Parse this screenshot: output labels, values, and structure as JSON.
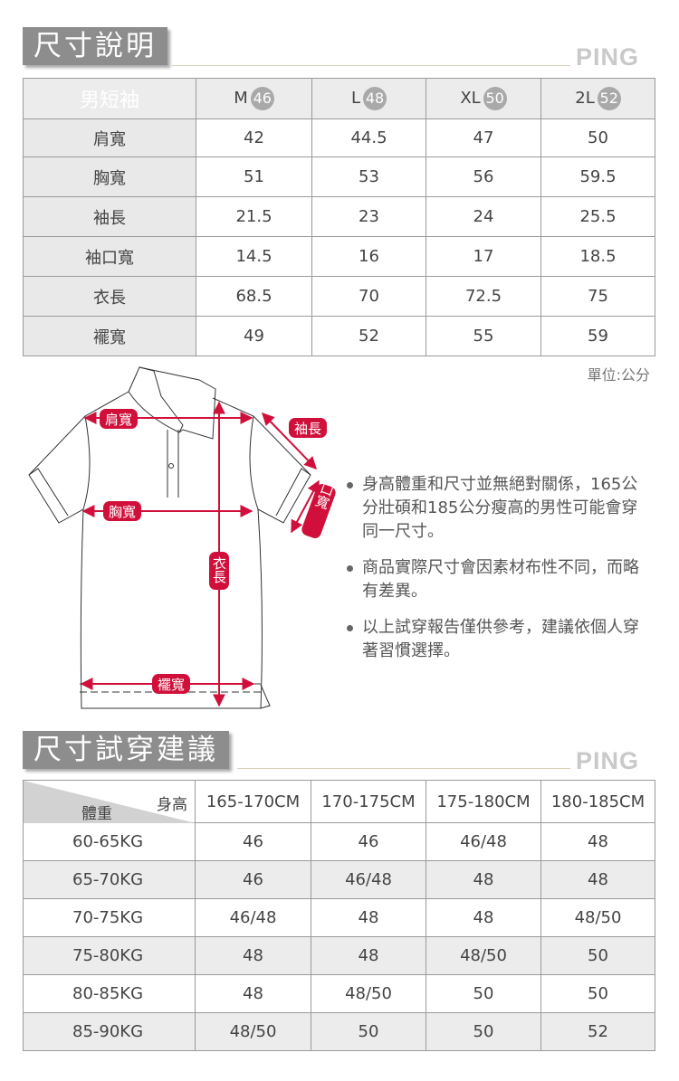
{
  "size_chart": {
    "title": "尺寸說明",
    "logo": "PING",
    "product": "男短袖",
    "sizes": [
      {
        "label": "M",
        "number": "46"
      },
      {
        "label": "L",
        "number": "48"
      },
      {
        "label": "XL",
        "number": "50"
      },
      {
        "label": "2L",
        "number": "52"
      }
    ],
    "rows": [
      {
        "name": "肩寬",
        "values": [
          "42",
          "44.5",
          "47",
          "50"
        ]
      },
      {
        "name": "胸寬",
        "values": [
          "51",
          "53",
          "56",
          "59.5"
        ]
      },
      {
        "name": "袖長",
        "values": [
          "21.5",
          "23",
          "24",
          "25.5"
        ]
      },
      {
        "name": "袖口寬",
        "values": [
          "14.5",
          "16",
          "17",
          "18.5"
        ]
      },
      {
        "name": "衣長",
        "values": [
          "68.5",
          "70",
          "72.5",
          "75"
        ]
      },
      {
        "name": "襬寬",
        "values": [
          "49",
          "52",
          "55",
          "59"
        ]
      }
    ],
    "unit": "單位:公分"
  },
  "diagram": {
    "labels": {
      "shoulder": "肩寬",
      "sleeve_length": "袖長",
      "chest": "胸寬",
      "cuff": "袖口寬",
      "length": "衣長",
      "hem": "襬寬"
    },
    "accent_color": "#d0103a"
  },
  "notes": [
    "身高體重和尺寸並無絕對關係，165公分壯碩和185公分瘦高的男性可能會穿同一尺寸。",
    "商品實際尺寸會因素材布性不同，而略有差異。",
    "以上試穿報告僅供參考，建議依個人穿著習慣選擇。"
  ],
  "fit_chart": {
    "title": "尺寸試穿建議",
    "logo": "PING",
    "corner_height": "身高",
    "corner_weight": "體重",
    "heights": [
      "165-170CM",
      "170-175CM",
      "175-180CM",
      "180-185CM"
    ],
    "rows": [
      {
        "weight": "60-65KG",
        "values": [
          "46",
          "46",
          "46/48",
          "48"
        ]
      },
      {
        "weight": "65-70KG",
        "values": [
          "46",
          "46/48",
          "48",
          "48"
        ]
      },
      {
        "weight": "70-75KG",
        "values": [
          "46/48",
          "48",
          "48",
          "48/50"
        ]
      },
      {
        "weight": "75-80KG",
        "values": [
          "48",
          "48",
          "48/50",
          "50"
        ]
      },
      {
        "weight": "80-85KG",
        "values": [
          "48",
          "48/50",
          "50",
          "50"
        ]
      },
      {
        "weight": "85-90KG",
        "values": [
          "48/50",
          "50",
          "50",
          "52"
        ]
      }
    ]
  }
}
